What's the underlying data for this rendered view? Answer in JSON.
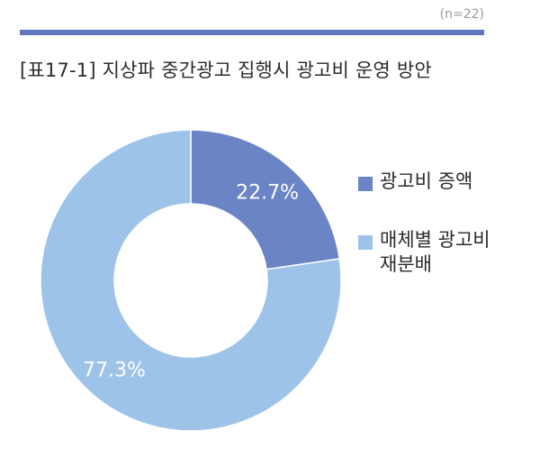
{
  "header": {
    "sample_size": "(n=22)",
    "title": "[표17-1] 지상파 중간광고 집행시 광고비 운영 방안"
  },
  "colors": {
    "accent_bar": "#6077c0",
    "series_dark": "#6a84c5",
    "series_light": "#9dc3e8",
    "label_text": "#ffffff"
  },
  "chart_data": {
    "type": "pie",
    "donut": true,
    "categories": [
      "광고비 증액",
      "매체별 광고비 재분배"
    ],
    "values": [
      22.7,
      77.3
    ],
    "data_labels": [
      "22.7%",
      "77.3%"
    ],
    "title": "[표17-1] 지상파 중간광고 집행시 광고비 운영 방안",
    "legend_position": "right"
  }
}
